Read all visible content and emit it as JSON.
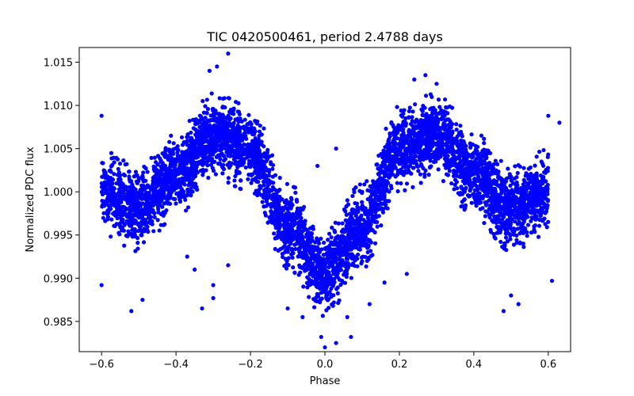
{
  "chart_data": {
    "type": "scatter",
    "title": "TIC 0420500461, period 2.4788 days",
    "xlabel": "Phase",
    "ylabel": "Normalized PDC flux",
    "xlim": [
      -0.66,
      0.66
    ],
    "ylim": [
      0.9815,
      1.0167
    ],
    "xticks": [
      -0.6,
      -0.4,
      -0.2,
      0.0,
      0.2,
      0.4,
      0.6
    ],
    "xtick_labels": [
      "−0.6",
      "−0.4",
      "−0.2",
      "0.0",
      "0.2",
      "0.4",
      "0.6"
    ],
    "yticks": [
      0.985,
      0.99,
      0.995,
      1.0,
      1.005,
      1.01,
      1.015
    ],
    "ytick_labels": [
      "0.985",
      "0.990",
      "0.995",
      "1.000",
      "1.005",
      "1.010",
      "1.015"
    ],
    "grid": false,
    "marker_color": "#0000ff",
    "series": [
      {
        "x_range": [
          -0.6,
          0.6
        ],
        "trend": {
          "x": [
            -0.6,
            -0.5,
            -0.4,
            -0.3,
            -0.2,
            -0.1,
            0.0,
            0.1,
            0.2,
            0.3,
            0.4,
            0.5,
            0.6
          ],
          "y": [
            1.0,
            0.998,
            1.002,
            1.0065,
            1.005,
            0.996,
            0.9905,
            0.996,
            1.005,
            1.0065,
            1.002,
            0.998,
            1.0
          ]
        },
        "scatter": 0.0035,
        "n_points": 5200,
        "outliers": [
          {
            "x": -0.29,
            "y": 1.0145
          },
          {
            "x": -0.26,
            "y": 1.016
          },
          {
            "x": -0.31,
            "y": 1.014
          },
          {
            "x": 0.27,
            "y": 1.0135
          },
          {
            "x": 0.24,
            "y": 1.013
          },
          {
            "x": 0.3,
            "y": 1.0125
          },
          {
            "x": -0.6,
            "y": 1.0088
          },
          {
            "x": 0.6,
            "y": 1.0088
          },
          {
            "x": 0.61,
            "y": 0.9897
          },
          {
            "x": -0.6,
            "y": 0.9892
          },
          {
            "x": -0.52,
            "y": 0.9862
          },
          {
            "x": -0.49,
            "y": 0.9875
          },
          {
            "x": 0.48,
            "y": 0.9862
          },
          {
            "x": 0.5,
            "y": 0.988
          },
          {
            "x": 0.52,
            "y": 0.987
          },
          {
            "x": -0.3,
            "y": 0.9877
          },
          {
            "x": -0.33,
            "y": 0.9865
          },
          {
            "x": -0.3,
            "y": 0.9892
          },
          {
            "x": -0.1,
            "y": 0.9865
          },
          {
            "x": -0.06,
            "y": 0.9855
          },
          {
            "x": 0.06,
            "y": 0.9855
          },
          {
            "x": 0.0,
            "y": 0.982
          },
          {
            "x": -0.01,
            "y": 0.9832
          },
          {
            "x": 0.03,
            "y": 0.9825
          },
          {
            "x": 0.12,
            "y": 0.987
          },
          {
            "x": 0.07,
            "y": 0.9832
          },
          {
            "x": -0.02,
            "y": 1.003
          },
          {
            "x": 0.03,
            "y": 1.005
          },
          {
            "x": -0.08,
            "y": 1.0005
          },
          {
            "x": 0.1,
            "y": 1.0
          },
          {
            "x": 0.22,
            "y": 0.9905
          },
          {
            "x": 0.16,
            "y": 0.9895
          },
          {
            "x": -0.35,
            "y": 0.991
          },
          {
            "x": -0.37,
            "y": 0.9925
          },
          {
            "x": -0.26,
            "y": 0.9915
          },
          {
            "x": 0.63,
            "y": 1.008
          }
        ]
      }
    ]
  }
}
